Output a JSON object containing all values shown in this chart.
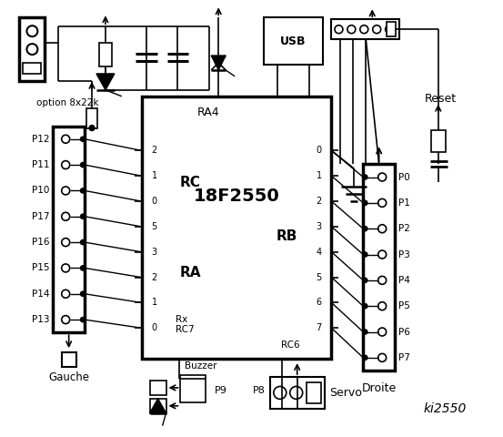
{
  "bg_color": "#ffffff",
  "chip_label": "18F2550",
  "chip_sublabel": "RA4",
  "rc_label": "RC",
  "ra_label": "RA",
  "rb_label": "RB",
  "rc_pins": [
    "2",
    "1",
    "0",
    "5",
    "3",
    "2",
    "1",
    "0"
  ],
  "rb_pins": [
    "0",
    "1",
    "2",
    "3",
    "4",
    "5",
    "6",
    "7"
  ],
  "left_labels": [
    "P12",
    "P11",
    "P10",
    "P17",
    "P16",
    "P15",
    "P14",
    "P13"
  ],
  "right_labels": [
    "P0",
    "P1",
    "P2",
    "P3",
    "P4",
    "P5",
    "P6",
    "P7"
  ],
  "option_text": "option 8x22k",
  "droite_text": "Droite",
  "reset_text": "Reset",
  "ki_text": "ki2550",
  "rc7_text": "Rx\nRC7",
  "rc6_text": "RC6",
  "usb_text": "USB",
  "gauche_text": "Gauche",
  "buzzer_text": "Buzzer",
  "servo_text": "Servo",
  "p9_text": "P9",
  "p8_text": "P8"
}
